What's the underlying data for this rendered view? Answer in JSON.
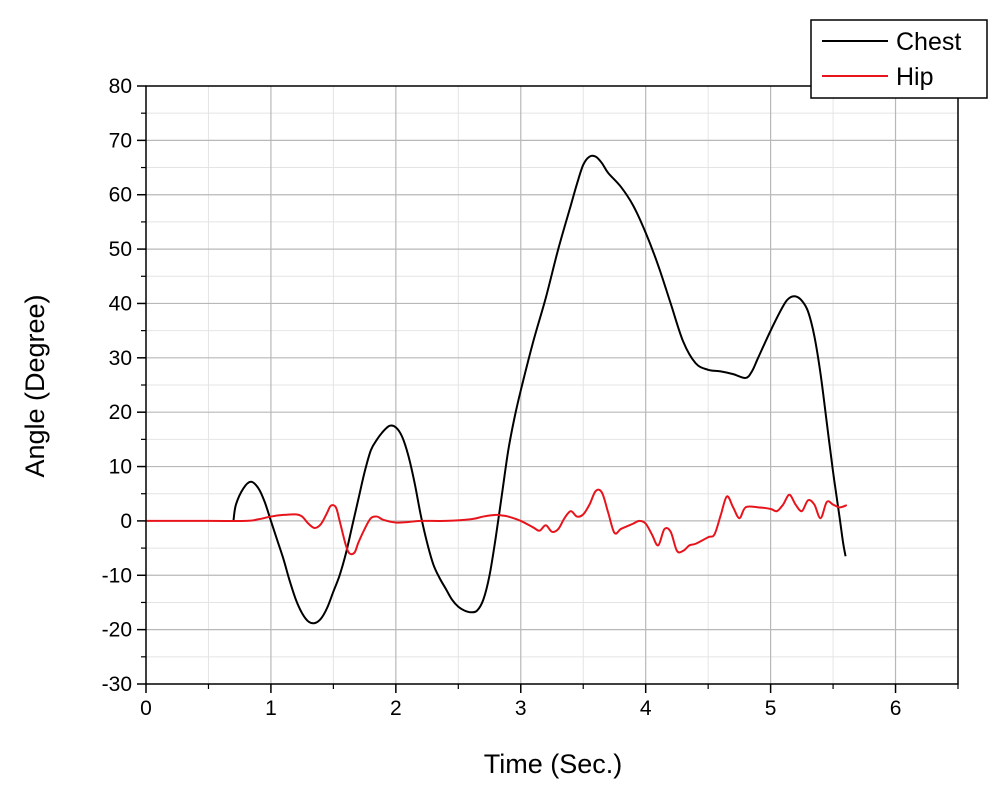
{
  "chart_data": {
    "type": "line",
    "xlabel": "Time (Sec.)",
    "ylabel": "Angle (Degree)",
    "xlim": [
      0,
      6.5
    ],
    "ylim": [
      -30,
      80
    ],
    "x_ticks": [
      0,
      1,
      2,
      3,
      4,
      5,
      6
    ],
    "y_ticks": [
      -30,
      -20,
      -10,
      0,
      10,
      20,
      30,
      40,
      50,
      60,
      70,
      80
    ],
    "x_minor_step": 0.5,
    "y_minor_step": 5,
    "grid": true,
    "legend_position": "top-right",
    "series": [
      {
        "name": "Chest",
        "color": "#000000",
        "points": [
          [
            0.7,
            0
          ],
          [
            0.72,
            3
          ],
          [
            0.78,
            6
          ],
          [
            0.84,
            7.2
          ],
          [
            0.9,
            6
          ],
          [
            0.95,
            3.5
          ],
          [
            1.0,
            0
          ],
          [
            1.05,
            -3.5
          ],
          [
            1.1,
            -7
          ],
          [
            1.15,
            -11
          ],
          [
            1.2,
            -14.5
          ],
          [
            1.25,
            -17
          ],
          [
            1.3,
            -18.5
          ],
          [
            1.35,
            -18.8
          ],
          [
            1.4,
            -18
          ],
          [
            1.45,
            -16
          ],
          [
            1.5,
            -13
          ],
          [
            1.55,
            -10
          ],
          [
            1.6,
            -6
          ],
          [
            1.65,
            -1
          ],
          [
            1.7,
            4
          ],
          [
            1.75,
            9
          ],
          [
            1.8,
            13
          ],
          [
            1.85,
            15
          ],
          [
            1.9,
            16.5
          ],
          [
            1.95,
            17.5
          ],
          [
            2.0,
            17.2
          ],
          [
            2.05,
            15.5
          ],
          [
            2.1,
            12
          ],
          [
            2.15,
            7
          ],
          [
            2.2,
            1
          ],
          [
            2.25,
            -4
          ],
          [
            2.3,
            -8
          ],
          [
            2.35,
            -10.5
          ],
          [
            2.4,
            -12.5
          ],
          [
            2.45,
            -14.5
          ],
          [
            2.5,
            -15.8
          ],
          [
            2.55,
            -16.5
          ],
          [
            2.6,
            -16.8
          ],
          [
            2.65,
            -16.5
          ],
          [
            2.7,
            -14.5
          ],
          [
            2.75,
            -10
          ],
          [
            2.8,
            -3
          ],
          [
            2.85,
            5
          ],
          [
            2.9,
            13
          ],
          [
            2.95,
            19
          ],
          [
            3.0,
            24
          ],
          [
            3.1,
            33
          ],
          [
            3.2,
            41
          ],
          [
            3.3,
            50
          ],
          [
            3.4,
            58
          ],
          [
            3.45,
            62
          ],
          [
            3.5,
            65.5
          ],
          [
            3.55,
            67
          ],
          [
            3.6,
            67
          ],
          [
            3.65,
            65.8
          ],
          [
            3.7,
            64
          ],
          [
            3.8,
            61.5
          ],
          [
            3.9,
            58
          ],
          [
            4.0,
            53
          ],
          [
            4.1,
            47
          ],
          [
            4.2,
            40
          ],
          [
            4.3,
            33
          ],
          [
            4.4,
            29
          ],
          [
            4.5,
            27.8
          ],
          [
            4.6,
            27.5
          ],
          [
            4.7,
            27
          ],
          [
            4.8,
            26.3
          ],
          [
            4.85,
            27.5
          ],
          [
            4.9,
            30
          ],
          [
            5.0,
            35
          ],
          [
            5.1,
            39.5
          ],
          [
            5.15,
            41
          ],
          [
            5.2,
            41.3
          ],
          [
            5.25,
            40.5
          ],
          [
            5.3,
            38.5
          ],
          [
            5.35,
            34
          ],
          [
            5.4,
            27
          ],
          [
            5.45,
            18
          ],
          [
            5.5,
            9
          ],
          [
            5.55,
            1
          ],
          [
            5.58,
            -4
          ],
          [
            5.6,
            -6.5
          ]
        ]
      },
      {
        "name": "Hip",
        "color": "#e8141b",
        "points": [
          [
            0.0,
            0
          ],
          [
            0.5,
            0
          ],
          [
            0.8,
            0
          ],
          [
            0.9,
            0.3
          ],
          [
            1.0,
            0.8
          ],
          [
            1.1,
            1.1
          ],
          [
            1.2,
            1.2
          ],
          [
            1.25,
            0.8
          ],
          [
            1.3,
            -0.5
          ],
          [
            1.35,
            -1.3
          ],
          [
            1.4,
            -0.6
          ],
          [
            1.45,
            1.5
          ],
          [
            1.48,
            2.8
          ],
          [
            1.52,
            2.5
          ],
          [
            1.55,
            0
          ],
          [
            1.6,
            -4.5
          ],
          [
            1.63,
            -6
          ],
          [
            1.67,
            -5.8
          ],
          [
            1.7,
            -4
          ],
          [
            1.75,
            -1.5
          ],
          [
            1.8,
            0.5
          ],
          [
            1.85,
            0.8
          ],
          [
            1.9,
            0.2
          ],
          [
            2.0,
            -0.3
          ],
          [
            2.1,
            -0.2
          ],
          [
            2.2,
            0
          ],
          [
            2.4,
            0
          ],
          [
            2.6,
            0.3
          ],
          [
            2.7,
            0.8
          ],
          [
            2.8,
            1.1
          ],
          [
            2.85,
            1.0
          ],
          [
            2.9,
            0.8
          ],
          [
            3.0,
            0
          ],
          [
            3.1,
            -1.2
          ],
          [
            3.15,
            -1.8
          ],
          [
            3.2,
            -0.8
          ],
          [
            3.25,
            -2
          ],
          [
            3.3,
            -1.5
          ],
          [
            3.35,
            0.5
          ],
          [
            3.4,
            1.8
          ],
          [
            3.45,
            0.8
          ],
          [
            3.5,
            1.2
          ],
          [
            3.55,
            3
          ],
          [
            3.6,
            5.5
          ],
          [
            3.65,
            5.2
          ],
          [
            3.7,
            1.5
          ],
          [
            3.75,
            -2.2
          ],
          [
            3.8,
            -1.5
          ],
          [
            3.85,
            -1
          ],
          [
            3.9,
            -0.5
          ],
          [
            3.95,
            0
          ],
          [
            4.0,
            -0.5
          ],
          [
            4.05,
            -2.5
          ],
          [
            4.1,
            -4.5
          ],
          [
            4.15,
            -1.5
          ],
          [
            4.2,
            -2
          ],
          [
            4.25,
            -5.5
          ],
          [
            4.3,
            -5.5
          ],
          [
            4.35,
            -4.5
          ],
          [
            4.4,
            -4.2
          ],
          [
            4.5,
            -3
          ],
          [
            4.55,
            -2.5
          ],
          [
            4.6,
            1
          ],
          [
            4.65,
            4.5
          ],
          [
            4.7,
            2.5
          ],
          [
            4.75,
            0.5
          ],
          [
            4.8,
            2.5
          ],
          [
            4.9,
            2.5
          ],
          [
            5.0,
            2.2
          ],
          [
            5.05,
            1.8
          ],
          [
            5.1,
            3
          ],
          [
            5.15,
            4.8
          ],
          [
            5.2,
            3
          ],
          [
            5.25,
            1.8
          ],
          [
            5.3,
            3.8
          ],
          [
            5.35,
            3
          ],
          [
            5.4,
            0.5
          ],
          [
            5.45,
            3.5
          ],
          [
            5.5,
            3
          ],
          [
            5.55,
            2.5
          ],
          [
            5.6,
            2.8
          ],
          [
            5.6,
            3
          ]
        ]
      }
    ]
  }
}
